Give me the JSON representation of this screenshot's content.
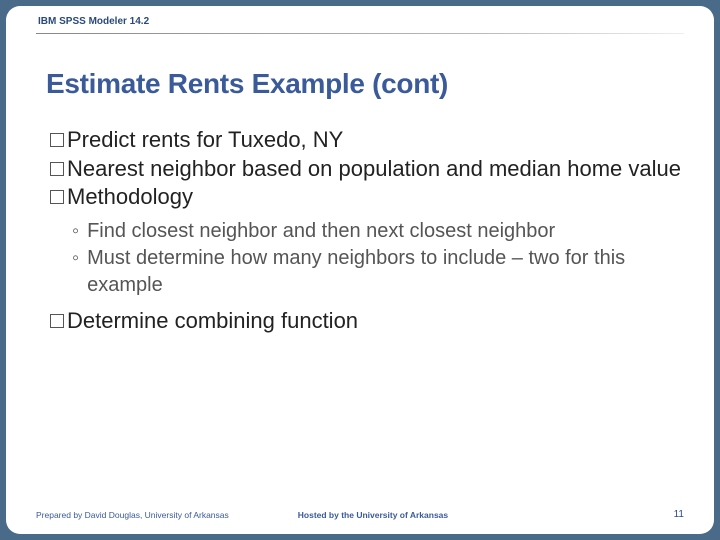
{
  "header": {
    "label": "IBM SPSS Modeler 14.2"
  },
  "title": "Estimate Rents Example (cont)",
  "bullets": [
    {
      "text": "Predict rents for Tuxedo, NY"
    },
    {
      "text": "Nearest neighbor based on population and median home value"
    },
    {
      "text": "Methodology"
    }
  ],
  "sub_bullets": [
    {
      "text": "Find closest neighbor and then next closest neighbor"
    },
    {
      "text": "Must determine how many neighbors to include – two for this example"
    }
  ],
  "bullets_after": [
    {
      "text": "Determine combining function"
    }
  ],
  "footer": {
    "left": "Prepared by David Douglas, University of Arkansas",
    "center": "Hosted by the University of Arkansas",
    "page": "11"
  },
  "colors": {
    "page_bg": "#4a6a8a",
    "slide_bg": "#ffffff",
    "title_color": "#3a5a9a",
    "body_color": "#222222",
    "sub_color": "#555555",
    "footer_color": "#3a5a9a"
  }
}
